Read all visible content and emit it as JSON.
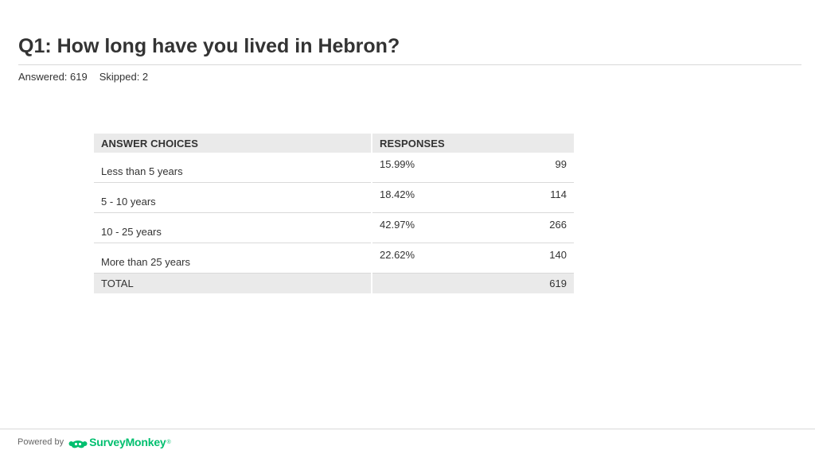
{
  "question": {
    "title": "Q1: How long have you lived in Hebron?",
    "answered": "Answered: 619",
    "skipped": "Skipped: 2"
  },
  "table": {
    "headers": {
      "choices": "ANSWER CHOICES",
      "responses": "RESPONSES"
    },
    "rows": [
      {
        "choice": "Less than 5 years",
        "percent": "15.99%",
        "count": "99"
      },
      {
        "choice": "5 - 10 years",
        "percent": "18.42%",
        "count": "114"
      },
      {
        "choice": "10 - 25 years",
        "percent": "42.97%",
        "count": "266"
      },
      {
        "choice": "More than 25 years",
        "percent": "22.62%",
        "count": "140"
      }
    ],
    "total": {
      "label": "TOTAL",
      "count": "619"
    }
  },
  "footer": {
    "powered_by": "Powered by",
    "brand": "SurveyMonkey",
    "brand_mark": "®",
    "brand_icon": "surveymonkey-logo-icon",
    "brand_color": "#00bf6f"
  }
}
